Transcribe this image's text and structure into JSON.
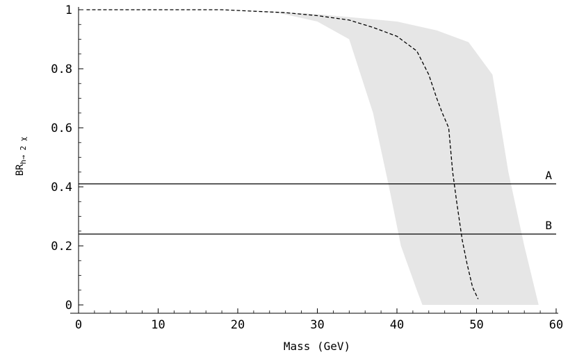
{
  "chart_data": {
    "type": "line",
    "xlabel": "Mass (GeV)",
    "ylabel": {
      "main": "BR",
      "sub": "h→ 2 χ"
    },
    "xlim": [
      0,
      60
    ],
    "ylim": [
      0,
      1
    ],
    "x_ticks": [
      {
        "value": 0,
        "label": "0"
      },
      {
        "value": 10,
        "label": "10"
      },
      {
        "value": 20,
        "label": "20"
      },
      {
        "value": 30,
        "label": "30"
      },
      {
        "value": 40,
        "label": "40"
      },
      {
        "value": 50,
        "label": "50"
      },
      {
        "value": 60,
        "label": "60"
      }
    ],
    "y_ticks": [
      {
        "value": 0,
        "label": "0"
      },
      {
        "value": 0.2,
        "label": "0.2"
      },
      {
        "value": 0.4,
        "label": "0.4"
      },
      {
        "value": 0.6,
        "label": "0.6"
      },
      {
        "value": 0.8,
        "label": "0.8"
      },
      {
        "value": 1,
        "label": "1"
      }
    ],
    "band": {
      "color": "#e6e6e6",
      "upper": [
        {
          "x": 20,
          "y": 1.0
        },
        {
          "x": 30,
          "y": 0.985
        },
        {
          "x": 40,
          "y": 0.96
        },
        {
          "x": 45,
          "y": 0.93
        },
        {
          "x": 49,
          "y": 0.89
        },
        {
          "x": 52,
          "y": 0.78
        },
        {
          "x": 54,
          "y": 0.45
        },
        {
          "x": 56,
          "y": 0.2
        },
        {
          "x": 57.8,
          "y": 0.0
        }
      ],
      "lower": [
        {
          "x": 20,
          "y": 1.0
        },
        {
          "x": 25,
          "y": 0.99
        },
        {
          "x": 30,
          "y": 0.96
        },
        {
          "x": 34,
          "y": 0.9
        },
        {
          "x": 37,
          "y": 0.65
        },
        {
          "x": 39,
          "y": 0.4
        },
        {
          "x": 40.5,
          "y": 0.2
        },
        {
          "x": 42.5,
          "y": 0.05
        },
        {
          "x": 43.2,
          "y": 0.0
        }
      ]
    },
    "series": [
      {
        "style": "dashed",
        "color": "#000000",
        "points": [
          {
            "x": 1,
            "y": 1.0
          },
          {
            "x": 18,
            "y": 1.0
          },
          {
            "x": 26,
            "y": 0.99
          },
          {
            "x": 30,
            "y": 0.98
          },
          {
            "x": 34,
            "y": 0.965
          },
          {
            "x": 37,
            "y": 0.94
          },
          {
            "x": 40,
            "y": 0.91
          },
          {
            "x": 42.5,
            "y": 0.86
          },
          {
            "x": 44,
            "y": 0.78
          },
          {
            "x": 45,
            "y": 0.7
          },
          {
            "x": 45.7,
            "y": 0.65
          },
          {
            "x": 46.5,
            "y": 0.6
          },
          {
            "x": 47,
            "y": 0.45
          },
          {
            "x": 47.5,
            "y": 0.35
          },
          {
            "x": 48.2,
            "y": 0.22
          },
          {
            "x": 48.8,
            "y": 0.14
          },
          {
            "x": 49.5,
            "y": 0.06
          },
          {
            "x": 50.2,
            "y": 0.02
          }
        ]
      }
    ],
    "hlines": [
      {
        "label": "A",
        "y": 0.41
      },
      {
        "label": "B",
        "y": 0.24
      }
    ],
    "grid": false
  }
}
